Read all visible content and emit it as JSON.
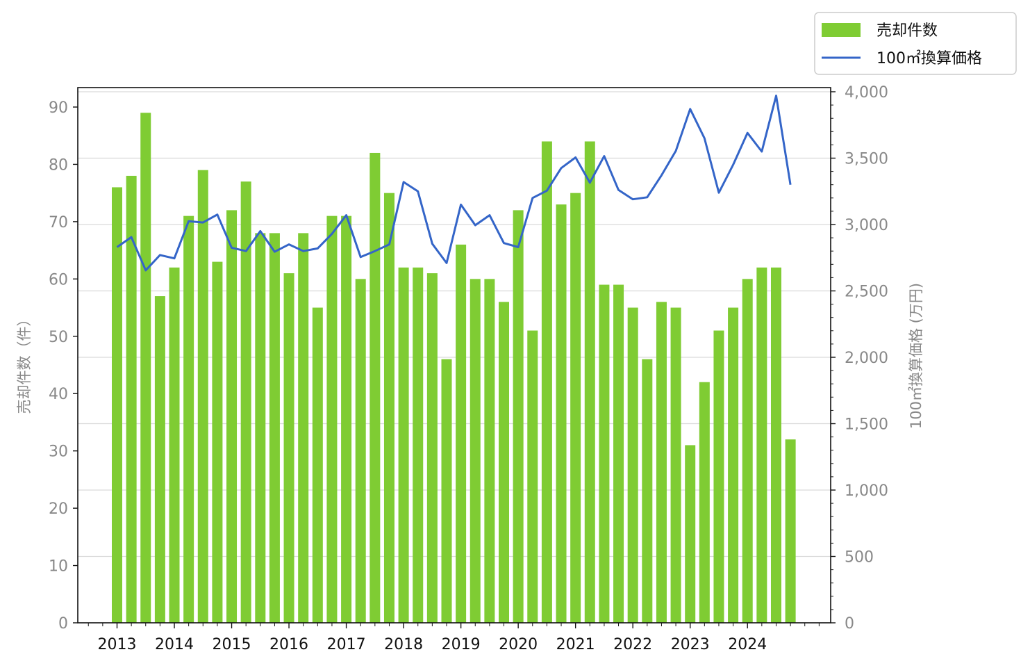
{
  "chart_data": {
    "type": "bar+line",
    "x_labels": [
      "2013",
      "2014",
      "2015",
      "2016",
      "2017",
      "2018",
      "2019",
      "2020",
      "2021",
      "2022",
      "2023",
      "2024"
    ],
    "periods_per_year": 4,
    "bar_series": {
      "name": "売却件数",
      "color": "#7fcc33",
      "values": [
        76,
        78,
        89,
        57,
        62,
        71,
        79,
        63,
        72,
        77,
        68,
        68,
        61,
        68,
        55,
        71,
        71,
        60,
        82,
        75,
        62,
        62,
        61,
        46,
        66,
        60,
        60,
        56,
        72,
        51,
        84,
        73,
        75,
        84,
        59,
        59,
        55,
        46,
        56,
        55,
        31,
        42,
        51,
        55,
        60,
        62,
        62,
        32
      ]
    },
    "line_series": {
      "name": "100㎡換算価格",
      "color": "#3465c8",
      "values": [
        2830,
        2905,
        2655,
        2770,
        2745,
        3025,
        3015,
        3075,
        2825,
        2800,
        2950,
        2795,
        2850,
        2800,
        2820,
        2930,
        3070,
        2755,
        2800,
        2850,
        3320,
        3250,
        2855,
        2710,
        3150,
        2995,
        3070,
        2860,
        2830,
        3200,
        3255,
        3425,
        3505,
        3315,
        3515,
        3260,
        3190,
        3205,
        3370,
        3555,
        3870,
        3650,
        3240,
        3450,
        3690,
        3550,
        3970,
        3300
      ]
    },
    "y_left": {
      "label": "売却件数（件）",
      "min": 0,
      "max": 90,
      "ticks": [
        0,
        10,
        20,
        30,
        40,
        50,
        60,
        70,
        80,
        90
      ],
      "tick_labels": [
        "0",
        "10",
        "20",
        "30",
        "40",
        "50",
        "60",
        "70",
        "80",
        "90"
      ]
    },
    "y_right": {
      "label": "100㎡換算価格 (万円)",
      "min": 0,
      "max": 4000,
      "ticks": [
        0,
        500,
        1000,
        1500,
        2000,
        2500,
        3000,
        3500,
        4000
      ],
      "tick_labels": [
        "0",
        "500",
        "1,000",
        "1,500",
        "2,000",
        "2,500",
        "3,000",
        "3,500",
        "4,000"
      ]
    },
    "grid": "horizontal",
    "legend_position": "top-right"
  }
}
